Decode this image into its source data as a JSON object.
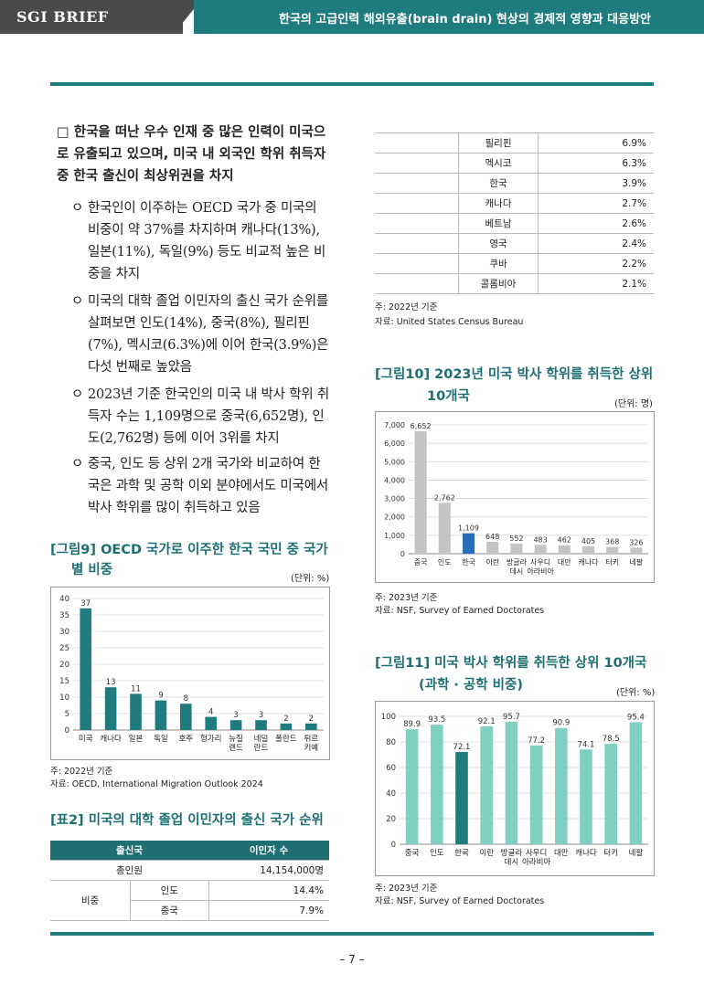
{
  "header": {
    "brand": "SGI BRIEF",
    "title": "한국의 고급인력 해외유출(brain drain) 현상의 경제적 영향과 대응방안"
  },
  "left": {
    "main_bullet": "□ 한국을 떠난 우수 인재 중 많은 인력이 미국으로 유출되고 있으며, 미국 내 외국인 학위 취득자 중 한국 출신이 최상위권을 차지",
    "sub_marker": "ㅇ",
    "sub_bullets": [
      "한국인이 이주하는 OECD 국가 중 미국의 비중이 약 37%를 차지하며 캐나다(13%), 일본(11%), 독일(9%) 등도 비교적 높은 비중을 차지",
      "미국의 대학 졸업 이민자의 출신 국가 순위를 살펴보면 인도(14%), 중국(8%), 필리핀(7%), 멕시코(6.3%)에 이어 한국(3.9%)은 다섯 번째로 높았음",
      "2023년 기준 한국인의 미국 내 박사 학위 취득자 수는 1,109명으로 중국(6,652명), 인도(2,762명) 등에 이어 3위를 차지",
      "중국, 인도 등 상위 2개 국가와 비교하여 한국은 과학 및 공학 이외 분야에서도 미국에서 박사 학위를 많이 취득하고 있음"
    ]
  },
  "fig9": {
    "title_line1": "[그림9] OECD 국가로 이주한 한국 국민 중 국가",
    "title_line2": "별 비중",
    "unit": "(단위: %)",
    "note1": "주: 2022년 기준",
    "note2": "자료: OECD, International Migration Outlook 2024"
  },
  "table2": {
    "title": "[표2] 미국의 대학 졸업 이민자의 출신 국가 순위",
    "col1": "출신국",
    "col2": "이민자 수",
    "total_label": "총인원",
    "total_value": "14,154,000명",
    "group_label": "비중",
    "rows": [
      {
        "country": "인도",
        "value": "14.4%"
      },
      {
        "country": "중국",
        "value": "7.9%"
      }
    ]
  },
  "table_cont": {
    "rows": [
      {
        "country": "필리핀",
        "value": "6.9%"
      },
      {
        "country": "멕시코",
        "value": "6.3%"
      },
      {
        "country": "한국",
        "value": "3.9%"
      },
      {
        "country": "캐나다",
        "value": "2.7%"
      },
      {
        "country": "베트남",
        "value": "2.6%"
      },
      {
        "country": "영국",
        "value": "2.4%"
      },
      {
        "country": "쿠바",
        "value": "2.2%"
      },
      {
        "country": "콜롬비아",
        "value": "2.1%"
      }
    ],
    "note1": "주: 2022년 기준",
    "note2": "자료: United States Census Bureau"
  },
  "fig10": {
    "title_line1": "[그림10] 2023년 미국 박사 학위를 취득한 상위",
    "title_line2": "10개국",
    "unit": "(단위: 명)",
    "note1": "주: 2023년 기준",
    "note2": "자료: NSF, Survey of Earned Doctorates"
  },
  "fig11": {
    "title_line1": "[그림11] 미국 박사 학위를 취득한 상위 10개국",
    "title_line2": "(과학 · 공학 비중)",
    "unit": "(단위: %)",
    "note1": "주: 2023년 기준",
    "note2": "자료: NSF, Survey of Earned Doctorates"
  },
  "page_number": "– 7 –",
  "chart_data": [
    {
      "id": "fig9",
      "type": "bar",
      "categories": [
        "미국",
        "캐나다",
        "일본",
        "독일",
        "호주",
        "헝가리",
        "뉴질\n랜드",
        "네덜\n란드",
        "폴란드",
        "튀르\n키예"
      ],
      "values": [
        37,
        13,
        11,
        9,
        8,
        4,
        3,
        3,
        2,
        2
      ],
      "value_labels": [
        "37",
        "13",
        "11",
        "9",
        "8",
        "4",
        "3",
        "3",
        "2",
        "2"
      ],
      "ylim": [
        0,
        40
      ],
      "yticks": [
        0,
        5,
        10,
        15,
        20,
        25,
        30,
        35,
        40
      ],
      "grid": true,
      "color": "#1e7b7e",
      "highlight_index": -1,
      "highlight_color": "#1e7b7e"
    },
    {
      "id": "fig10",
      "type": "bar",
      "categories": [
        "중국",
        "인도",
        "한국",
        "이란",
        "방글라\n데시",
        "사우디\n아라비아",
        "대만",
        "캐나다",
        "터키",
        "네팔"
      ],
      "values": [
        6652,
        2762,
        1109,
        648,
        552,
        483,
        462,
        405,
        368,
        326
      ],
      "value_labels": [
        "6,652",
        "2,762",
        "1,109",
        "648",
        "552",
        "483",
        "462",
        "405",
        "368",
        "326"
      ],
      "ylim": [
        0,
        7000
      ],
      "yticks": [
        0,
        1000,
        2000,
        3000,
        4000,
        5000,
        6000,
        7000
      ],
      "ytick_labels": [
        "0",
        "1,000",
        "2,000",
        "3,000",
        "4,000",
        "5,000",
        "6,000",
        "7,000"
      ],
      "grid": true,
      "color": "#c4c4c4",
      "highlight_index": 2,
      "highlight_color": "#2b6cb8"
    },
    {
      "id": "fig11",
      "type": "bar",
      "categories": [
        "중국",
        "인도",
        "한국",
        "이란",
        "방글라\n데시",
        "사우디\n아라비아",
        "대만",
        "캐나다",
        "터키",
        "네팔"
      ],
      "values": [
        89.9,
        93.5,
        72.1,
        92.1,
        95.7,
        77.2,
        90.9,
        74.1,
        78.5,
        95.4
      ],
      "value_labels": [
        "89.9",
        "93.5",
        "72.1",
        "92.1",
        "95.7",
        "77.2",
        "90.9",
        "74.1",
        "78.5",
        "95.4"
      ],
      "ylim": [
        0,
        100
      ],
      "yticks": [
        0,
        20,
        40,
        60,
        80,
        100
      ],
      "grid": true,
      "color": "#7fcfc3",
      "highlight_index": 2,
      "highlight_color": "#1e7b7e"
    }
  ]
}
